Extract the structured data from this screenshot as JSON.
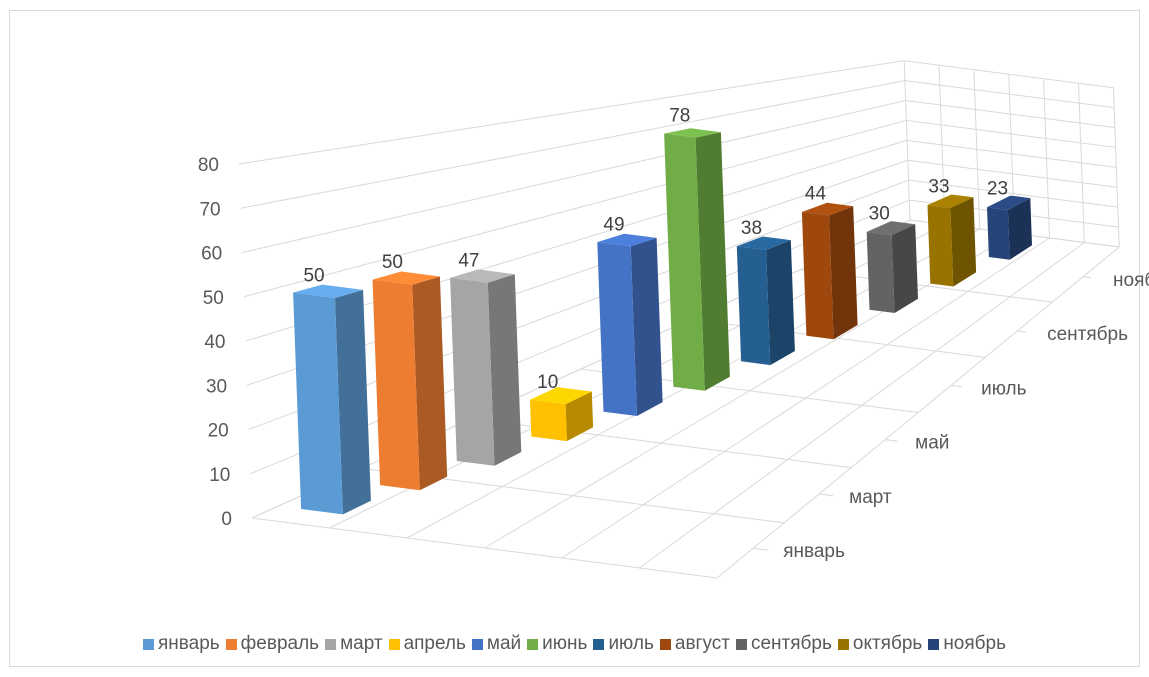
{
  "chart_data": {
    "type": "bar",
    "variant": "3d-column",
    "categories": [
      "январь",
      "февраль",
      "март",
      "апрель",
      "май",
      "июнь",
      "июль",
      "август",
      "сентябрь",
      "октябрь",
      "ноябрь"
    ],
    "values": [
      50,
      50,
      47,
      10,
      49,
      78,
      38,
      44,
      30,
      33,
      23
    ],
    "data_labels": [
      "50",
      "50",
      "47",
      "10",
      "49",
      "78",
      "38",
      "44",
      "30",
      "33",
      "23"
    ],
    "colors": [
      "#5b9bd5",
      "#ed7d31",
      "#a5a5a5",
      "#ffc000",
      "#4472c4",
      "#70ad47",
      "#255e91",
      "#9e480e",
      "#636363",
      "#997300",
      "#264478"
    ],
    "ylim": [
      0,
      80
    ],
    "y_ticks": [
      "0",
      "10",
      "20",
      "30",
      "40",
      "50",
      "60",
      "70",
      "80"
    ],
    "depth_tick_labels": [
      "январь",
      "март",
      "май",
      "июль",
      "сентябрь",
      "ноябрь"
    ],
    "grid": true,
    "legend_position": "bottom"
  }
}
